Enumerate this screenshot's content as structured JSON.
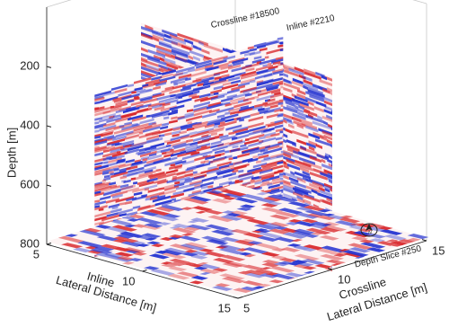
{
  "chart_data": {
    "type": "slice",
    "xlabel": [
      "Inline",
      "Lateral Distance [m]"
    ],
    "ylabel": [
      "Crossline",
      "Lateral Distance [m]"
    ],
    "zlabel": "Depth [m]",
    "xlim": [
      5,
      15
    ],
    "xticks": [
      5,
      10,
      15
    ],
    "ylim": [
      5,
      15
    ],
    "yticks": [
      5,
      10,
      15
    ],
    "zlim": [
      0,
      800
    ],
    "zticks": [
      200,
      400,
      600,
      800
    ],
    "slices": [
      {
        "label": "Crossline #18500",
        "axis": "y",
        "position": 10,
        "depth_range": [
          150,
          800
        ]
      },
      {
        "label": "Inline #2210",
        "axis": "x",
        "position": 7.5,
        "depth_range": [
          250,
          800
        ]
      },
      {
        "label": "Depth Slice #250",
        "axis": "z",
        "position": 790
      }
    ],
    "north": "N",
    "colors": [
      "#d8262a",
      "#1f2fd0"
    ]
  }
}
